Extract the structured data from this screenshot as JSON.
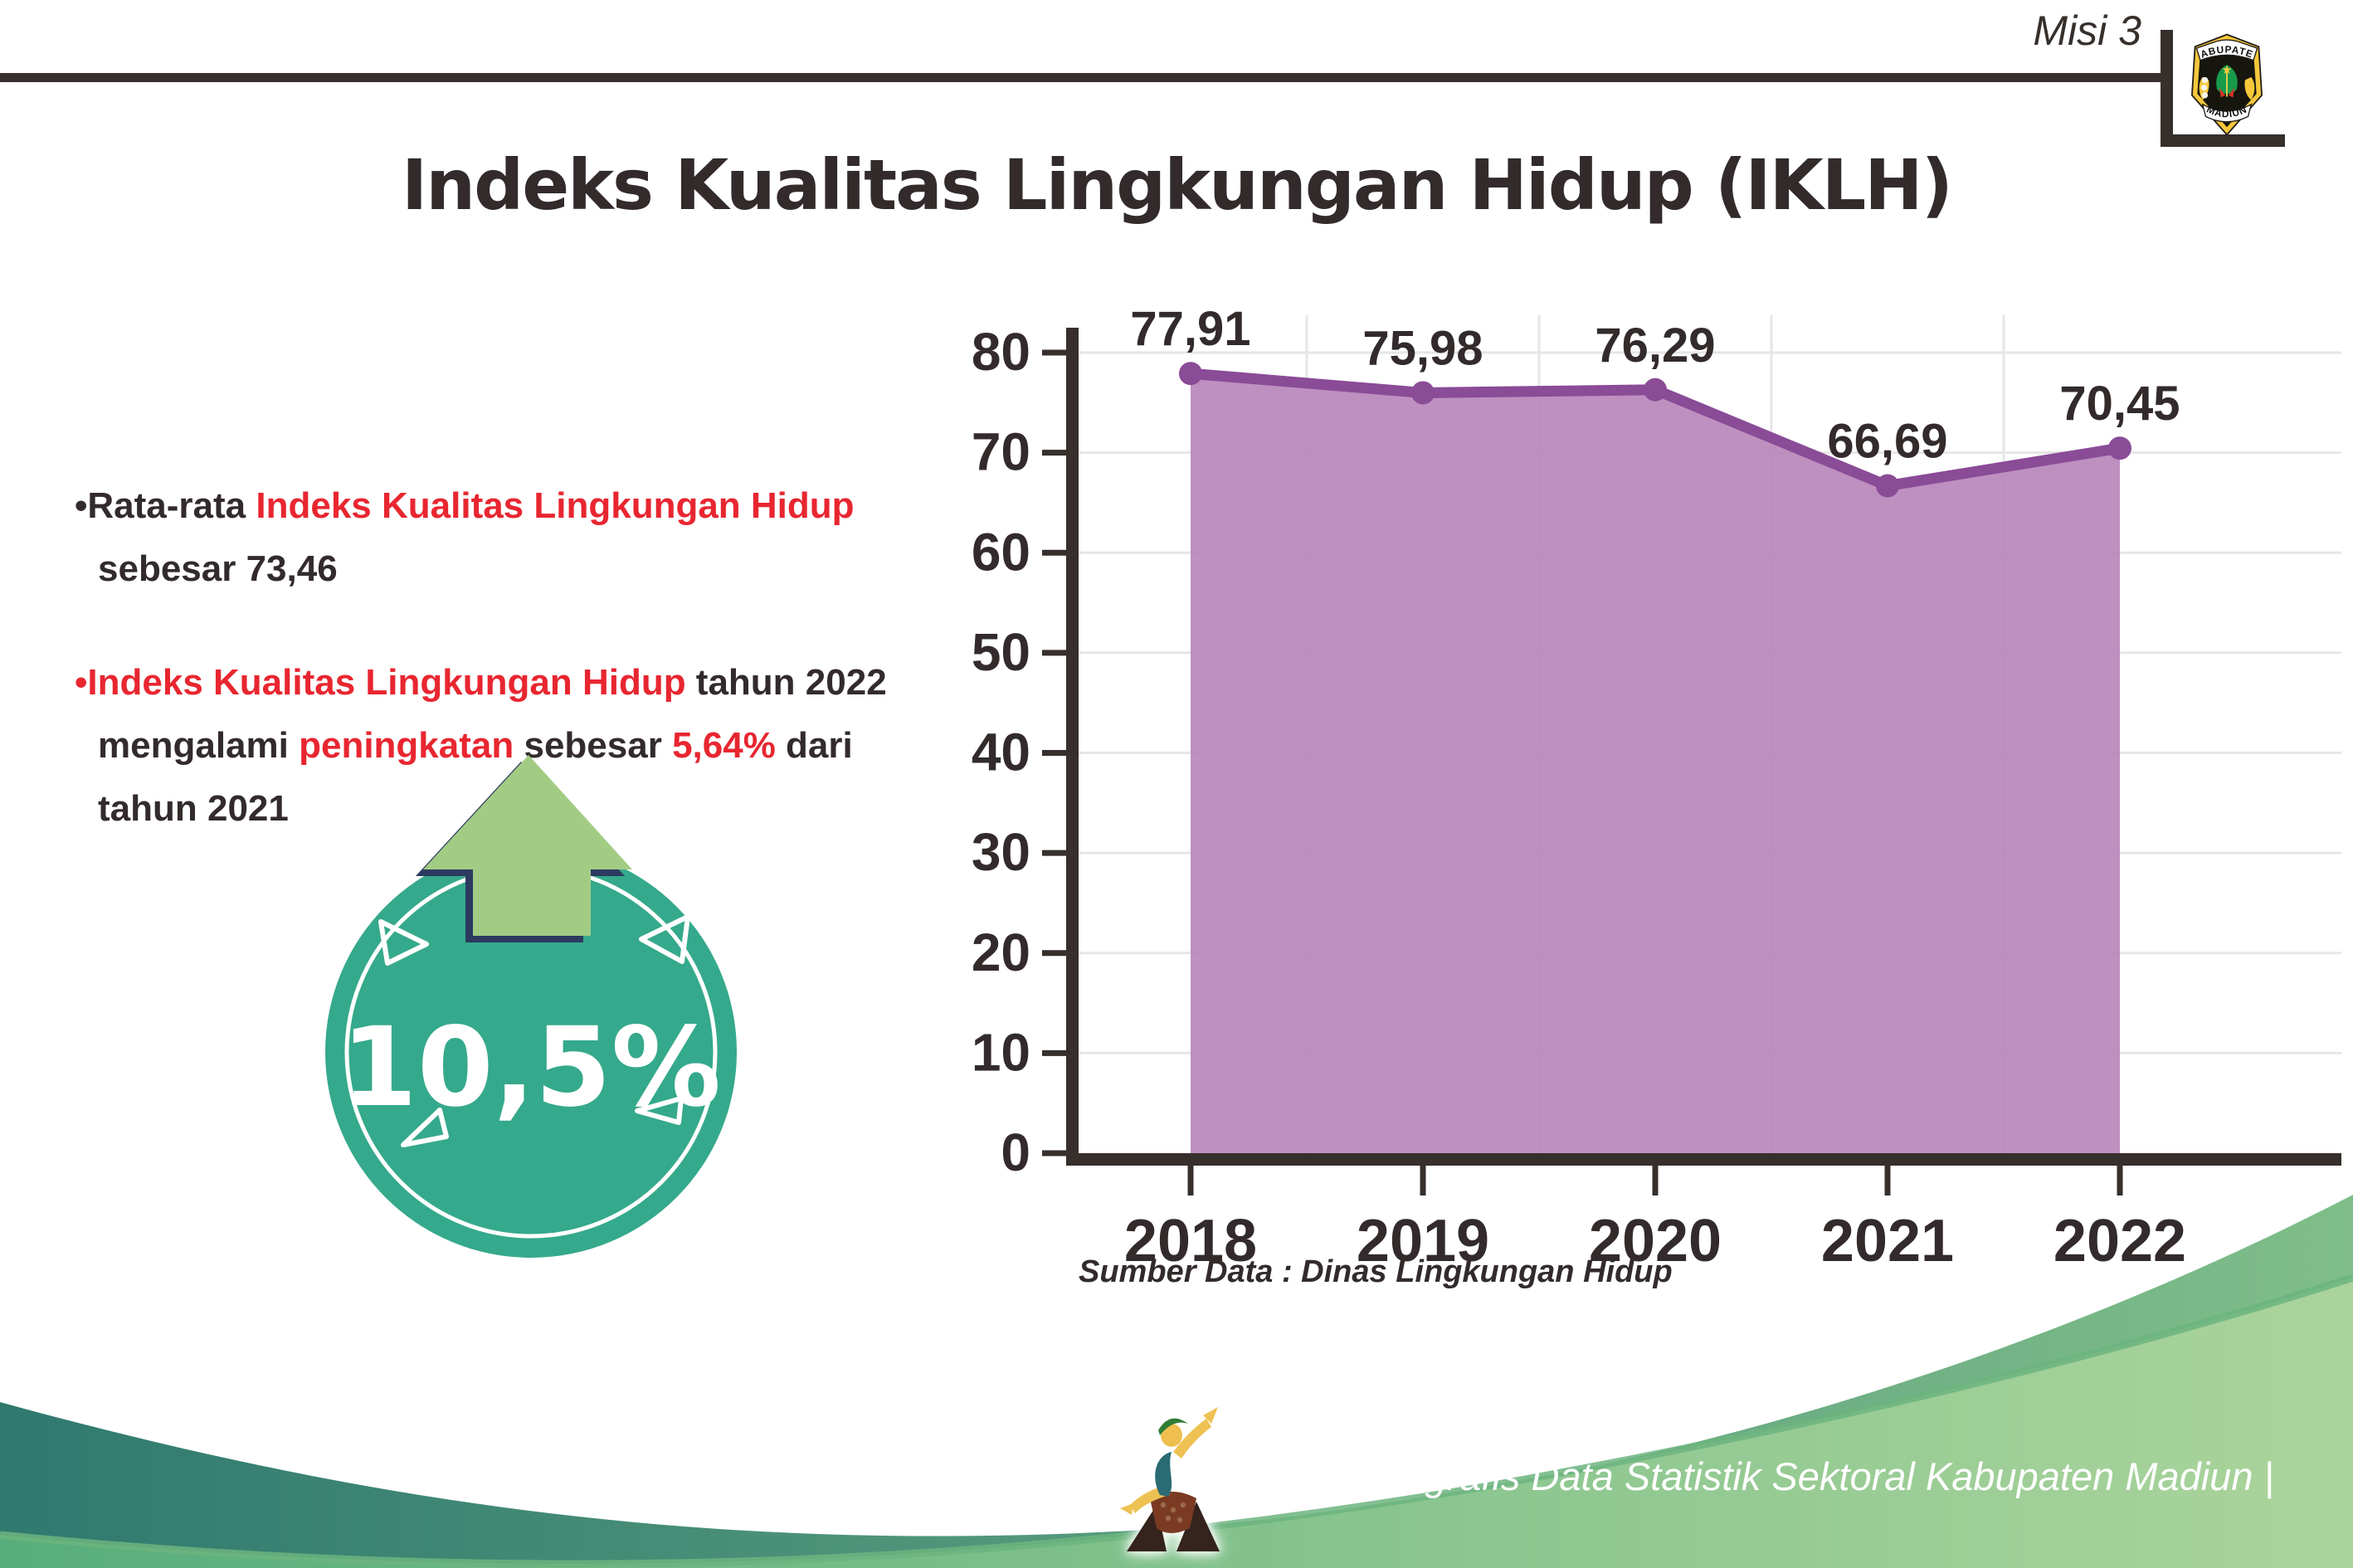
{
  "header": {
    "misi_label": "Misi 3",
    "title": "Indeks Kualitas Lingkungan Hidup (IKLH)",
    "logo": {
      "top_text": "KABUPATEN",
      "bottom_text": "MADIUN"
    }
  },
  "bullets": [
    {
      "parts": [
        {
          "text": "•Rata-rata "
        },
        {
          "text": "Indeks Kualitas Lingkungan Hidup"
        },
        {
          "text": "sebesar 73,46"
        }
      ]
    },
    {
      "parts": [
        {
          "text": "•Indeks Kualitas Lingkungan Hidup"
        },
        {
          "text": " tahun 2022"
        },
        {
          "text": "mengalami "
        },
        {
          "text": "peningkatan"
        },
        {
          "text": " sebesar "
        },
        {
          "text": "5,64%"
        },
        {
          "text": " dari"
        },
        {
          "text": "tahun 2021"
        }
      ]
    }
  ],
  "badge": {
    "value": "10,5%"
  },
  "chart_data": {
    "type": "area",
    "title": "",
    "xlabel": "",
    "ylabel": "",
    "x": [
      2018,
      2019,
      2020,
      2021,
      2022
    ],
    "series": [
      {
        "name": "IKLH",
        "values": [
          77.91,
          75.98,
          76.29,
          66.69,
          70.45
        ]
      }
    ],
    "point_labels": [
      "77,91",
      "75,98",
      "76,29",
      "66,69",
      "70,45"
    ],
    "ylim": [
      0,
      85
    ],
    "yticks": [
      0,
      10,
      20,
      30,
      40,
      50,
      60,
      70,
      80
    ],
    "grid": true,
    "legend_position": "none"
  },
  "source_note": "Sumber Data : Dinas Lingkungan Hidup",
  "footer": {
    "text": "Media Infografis Data Statistik Sektoral Kabupaten Madiun |"
  },
  "colors": {
    "dark": "#332b2b",
    "dark2": "#362f2c",
    "red": "#e82630",
    "teal-badge": "#35a98c",
    "arrow-green": "#a2cc84",
    "arrow-outline": "#2c3a60",
    "purple-line": "#8a4b97",
    "purple-fill": "#b888bb",
    "grid": "#e7e5e5",
    "wave-teal-dark": "#30796f",
    "wave-teal-light": "#7fbe8a",
    "wave-green-dark": "#57ae7b",
    "wave-green-light": "#abd49c",
    "wave-rim": "#6cb47f"
  }
}
